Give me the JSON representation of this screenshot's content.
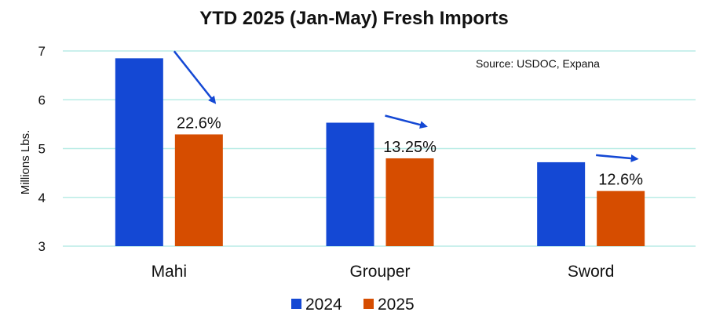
{
  "chart_data": {
    "type": "bar",
    "title": "YTD 2025 (Jan-May) Fresh Imports",
    "ylabel": "Millions Lbs.",
    "xlabel": "",
    "ylim": [
      3,
      7
    ],
    "yticks": [
      3,
      4,
      5,
      6,
      7
    ],
    "grid": true,
    "legend_position": "bottom",
    "categories": [
      "Mahi",
      "Grouper",
      "Sword"
    ],
    "series": [
      {
        "name": "2024",
        "color": "#1448d4",
        "values": [
          6.85,
          5.53,
          4.72
        ]
      },
      {
        "name": "2025",
        "color": "#d64d00",
        "values": [
          5.29,
          4.8,
          4.13
        ]
      }
    ],
    "annotations": [
      {
        "category": "Mahi",
        "label": "22.6%"
      },
      {
        "category": "Grouper",
        "label": "13.25%"
      },
      {
        "category": "Sword",
        "label": "12.6%"
      }
    ],
    "source_note": "Source: USDOC, Expana",
    "arrow_color": "#1448d4"
  }
}
